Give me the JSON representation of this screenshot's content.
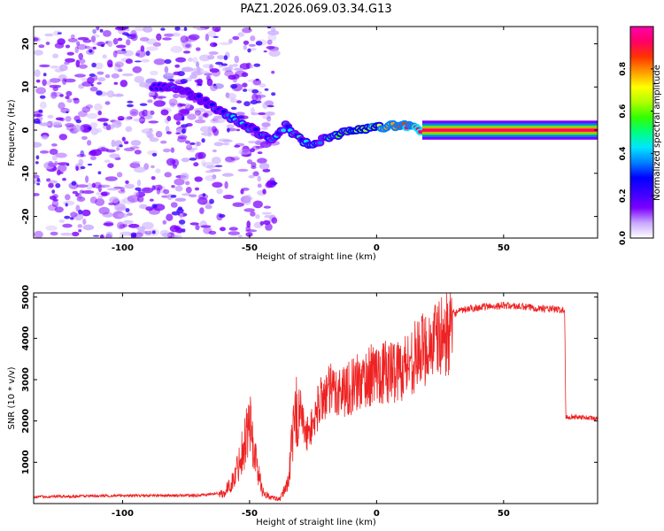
{
  "title": "PAZ1.2026.069.03.34.G13",
  "chart_data": [
    {
      "type": "heatmap",
      "title": "PAZ1.2026.069.03.34.G13",
      "xlabel": "Height of straight line (km)",
      "ylabel": "Frequency (Hz)",
      "xlim": [
        -135,
        87
      ],
      "ylim": [
        -25,
        24
      ],
      "xticks": [
        -100,
        -50,
        0,
        50
      ],
      "yticks": [
        -20,
        -10,
        0,
        10,
        20
      ],
      "xtick_labels": [
        "-100",
        "-50",
        "0",
        "50"
      ],
      "ytick_labels": [
        "-20",
        "-10",
        "0",
        "10",
        "20"
      ],
      "ridge": {
        "x": [
          -88,
          -80,
          -72,
          -66,
          -60,
          -55,
          -50,
          -45,
          -40,
          -36,
          -32,
          -28,
          -24,
          -20,
          -15,
          -10,
          -5,
          0,
          5,
          10,
          15,
          18,
          87
        ],
        "y": [
          10,
          10,
          8,
          6,
          4,
          2,
          0.5,
          -1,
          -2,
          1,
          -1,
          -3,
          -3,
          -2,
          -1,
          0,
          0.5,
          0.5,
          1,
          1,
          0.5,
          0,
          0
        ]
      },
      "colorbar": {
        "label": "Normalized spectral amplitude",
        "range": [
          0,
          1
        ],
        "ticks": [
          0.0,
          0.2,
          0.4,
          0.6,
          0.8
        ],
        "tick_labels": [
          "0.0",
          "0.2",
          "0.4",
          "0.6",
          "0.8"
        ],
        "colors": [
          "#ffffff",
          "#c8a8ff",
          "#7b00ff",
          "#3a00ff",
          "#0000ff",
          "#0080ff",
          "#00e5ff",
          "#00ff7f",
          "#32ff00",
          "#b0ff00",
          "#ffff00",
          "#ff9900",
          "#ff3300",
          "#ff0066",
          "#ff00aa"
        ]
      }
    },
    {
      "type": "line",
      "xlabel": "Height of straight line (km)",
      "ylabel": "SNR (10 * v/v)",
      "xlim": [
        -135,
        87
      ],
      "ylim": [
        0,
        5100
      ],
      "xticks": [
        -100,
        -50,
        0,
        50
      ],
      "yticks": [
        1000,
        2000,
        3000,
        4000,
        5000
      ],
      "xtick_labels": [
        "-100",
        "-50",
        "0",
        "50"
      ],
      "ytick_labels": [
        "1000",
        "2000",
        "3000",
        "4000",
        "5000"
      ],
      "series_color": "#ee2222",
      "envelope": {
        "x": [
          -135,
          -100,
          -70,
          -60,
          -56,
          -52,
          -50,
          -48,
          -45,
          -42,
          -38,
          -35,
          -32,
          -30,
          -28,
          -25,
          -22,
          -18,
          -14,
          -10,
          -5,
          0,
          5,
          10,
          15,
          20,
          25,
          30,
          35,
          40,
          50,
          60,
          70,
          74,
          74.5,
          80,
          87
        ],
        "y": [
          150,
          180,
          180,
          250,
          600,
          1500,
          2000,
          1200,
          300,
          150,
          100,
          500,
          2100,
          2500,
          1800,
          2100,
          2800,
          3000,
          3000,
          3100,
          3300,
          3500,
          3500,
          3600,
          3900,
          4200,
          4400,
          4600,
          4700,
          4750,
          4800,
          4750,
          4700,
          4680,
          2100,
          2100,
          2050
        ]
      }
    }
  ]
}
